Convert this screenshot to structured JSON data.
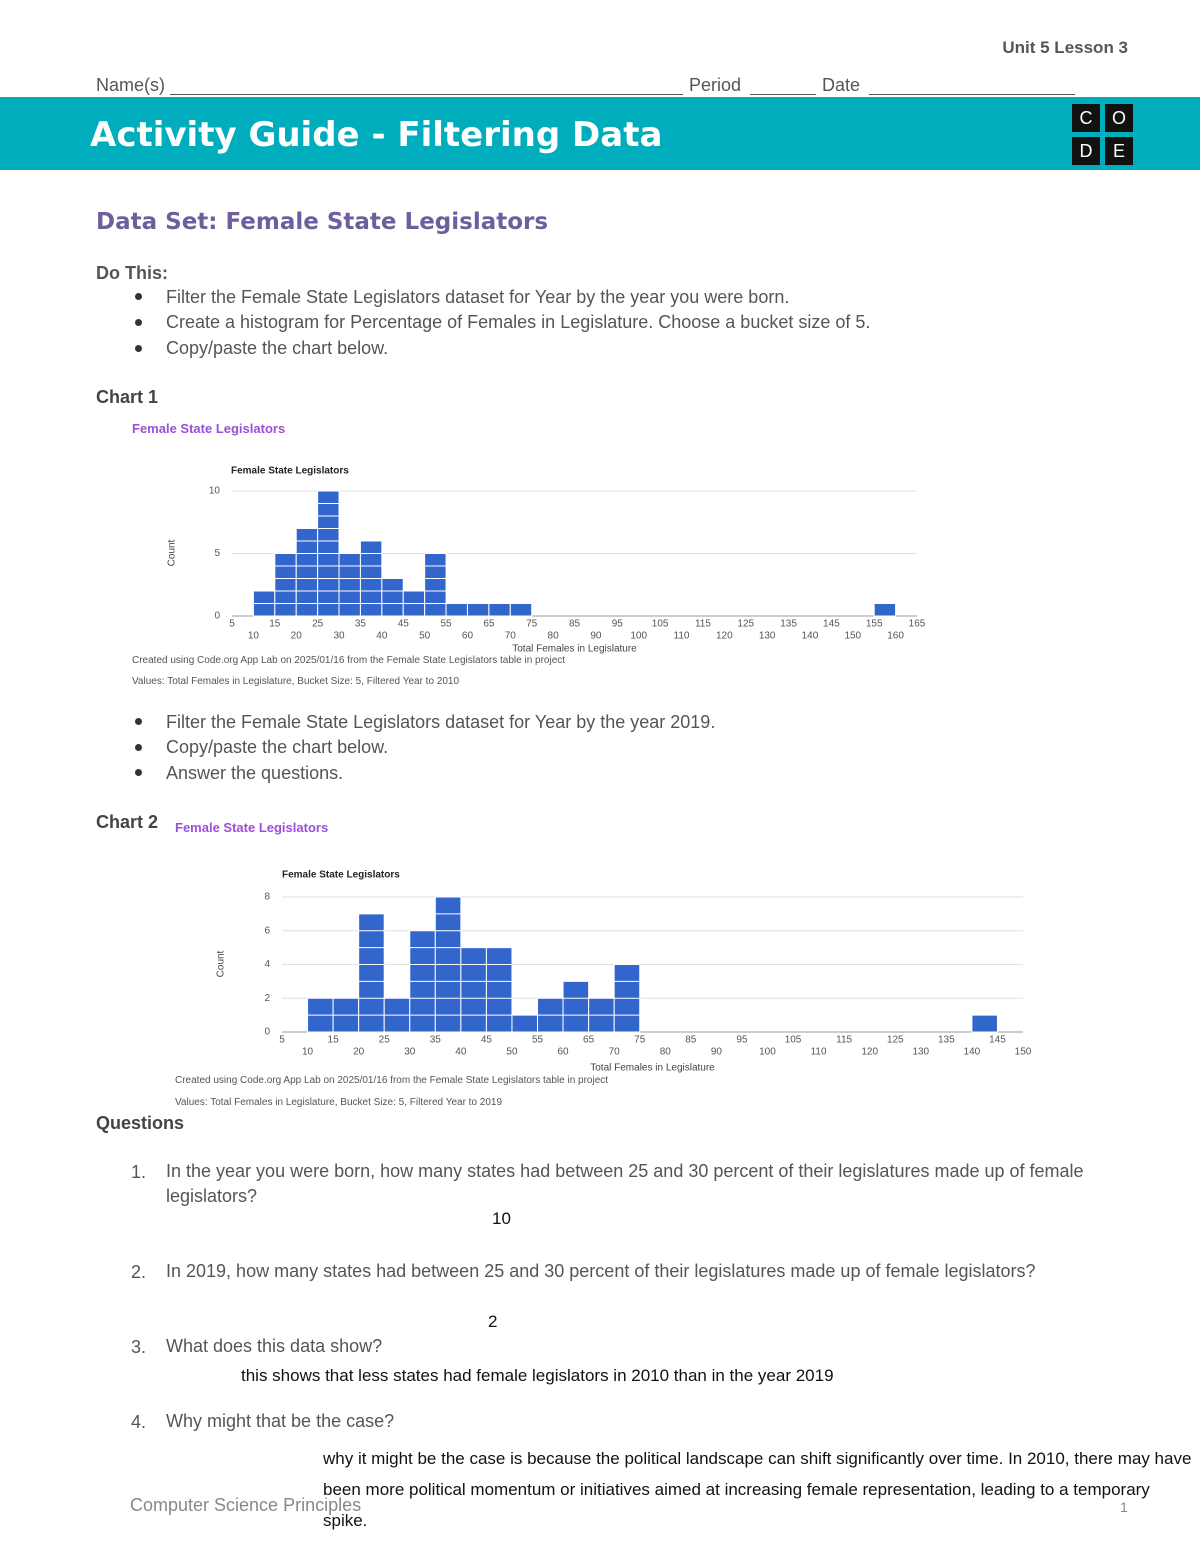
{
  "header": {
    "unit": "Unit 5 Lesson 3",
    "name_label": "Name(s)",
    "period_label": "Period",
    "date_label": "Date",
    "title": "Activity Guide - Filtering Data",
    "logo": [
      "C",
      "O",
      "D",
      "E"
    ]
  },
  "heading": "Data Set: Female State Legislators",
  "do_this_heading": "Do This:",
  "steps_1": [
    "Filter the Female State Legislators dataset for Year by the year you were born.",
    "Create a histogram for Percentage of Females in Legislature. Choose a bucket size of 5.",
    "Copy/paste the chart below."
  ],
  "chart_1": {
    "label": "Chart 1",
    "app_title": "Female State Legislators",
    "notes": [
      "Created using Code.org App Lab on 2025/01/16 from the Female State Legislators table in project",
      "Values: Total Females in Legislature, Bucket Size: 5, Filtered Year to 2010"
    ]
  },
  "steps_2": [
    "Filter the Female State Legislators dataset for Year by the year 2019.",
    "Copy/paste the chart below.",
    "Answer the questions."
  ],
  "chart_2": {
    "label": "Chart 2",
    "app_title": "Female State Legislators",
    "notes": [
      "Created using Code.org App Lab on 2025/01/16 from the Female State Legislators table in project",
      "Values: Total Females in Legislature, Bucket Size: 5, Filtered Year to 2019"
    ]
  },
  "chart_data": [
    {
      "type": "histogram",
      "title": "Female State Legislators",
      "x_label": "Total Females in Legislature",
      "y_label": "Count",
      "bins": [
        5,
        10,
        15,
        20,
        25,
        30,
        35,
        40,
        45,
        50,
        55,
        60,
        65,
        70,
        75,
        80,
        85,
        90,
        95,
        100,
        105,
        110,
        115,
        120,
        125,
        130,
        135,
        140,
        145,
        150,
        155,
        160,
        165
      ],
      "counts": [
        0,
        2,
        5,
        7,
        10,
        5,
        6,
        3,
        2,
        5,
        1,
        1,
        1,
        1,
        0,
        0,
        0,
        0,
        0,
        0,
        0,
        0,
        0,
        0,
        0,
        0,
        0,
        0,
        0,
        0,
        1,
        0
      ],
      "color": "#3366cc",
      "xlim": [
        5,
        165
      ],
      "xticks": [
        5,
        10,
        15,
        20,
        25,
        30,
        35,
        40,
        45,
        50,
        55,
        60,
        65,
        70,
        75,
        80,
        85,
        90,
        95,
        100,
        105,
        110,
        115,
        120,
        125,
        130,
        135,
        140,
        145,
        150,
        155,
        160,
        165
      ],
      "ylim": [
        0,
        10
      ],
      "yticks": [
        0,
        5,
        10
      ],
      "grid": true
    },
    {
      "type": "histogram",
      "title": "Female State Legislators",
      "x_label": "Total Females in Legislature",
      "y_label": "Count",
      "bins": [
        5,
        10,
        15,
        20,
        25,
        30,
        35,
        40,
        45,
        50,
        55,
        60,
        65,
        70,
        75,
        80,
        85,
        90,
        95,
        100,
        105,
        110,
        115,
        120,
        125,
        130,
        135,
        140,
        145,
        150
      ],
      "counts": [
        0,
        2,
        2,
        7,
        2,
        6,
        8,
        5,
        5,
        1,
        2,
        3,
        2,
        4,
        0,
        0,
        0,
        0,
        0,
        0,
        0,
        0,
        0,
        0,
        0,
        0,
        0,
        1,
        0
      ],
      "color": "#3366cc",
      "xlim": [
        5,
        150
      ],
      "xticks": [
        5,
        10,
        15,
        20,
        25,
        30,
        35,
        40,
        45,
        50,
        55,
        60,
        65,
        70,
        75,
        80,
        85,
        90,
        95,
        100,
        105,
        110,
        115,
        120,
        125,
        130,
        135,
        140,
        145,
        150
      ],
      "ylim": [
        0,
        8
      ],
      "yticks": [
        0,
        2,
        4,
        6,
        8
      ],
      "grid": true
    }
  ],
  "questions": {
    "heading": "Questions",
    "items": [
      {
        "number": "1.",
        "text": "In the year you were born, how many states had between 25 and 30 percent of their legislatures made up of female legislators?",
        "answer": "10"
      },
      {
        "number": "2.",
        "text": "In 2019, how many states had between 25 and 30 percent of their legislatures made up of female legislators?",
        "answer": "2"
      },
      {
        "number": "3.",
        "text": "What does this data show?",
        "answer": "this shows that less states had female legislators in 2010 than in the year 2019"
      },
      {
        "number": "4.",
        "text": "Why might that be the case?",
        "answer": "why it might be the case is because the political landscape can shift significantly over time. In 2010, there may have been more political momentum or initiatives aimed at increasing female representation, leading to a temporary spike."
      }
    ]
  },
  "footer": {
    "course": "Computer Science Principles",
    "page": "1"
  }
}
